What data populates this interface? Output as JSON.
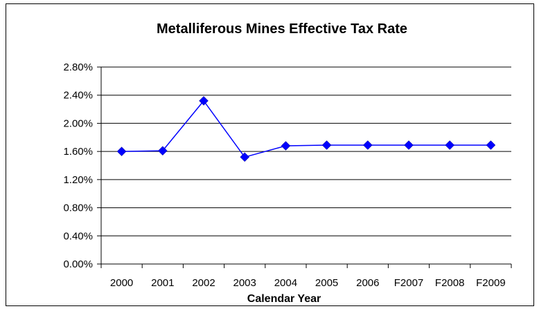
{
  "chart_data": {
    "type": "line",
    "title": "Metalliferous Mines Effective Tax Rate",
    "xlabel": "Calendar Year",
    "ylabel": "",
    "categories": [
      "2000",
      "2001",
      "2002",
      "2003",
      "2004",
      "2005",
      "2006",
      "F2007",
      "F2008",
      "F2009"
    ],
    "series": [
      {
        "values": [
          1.6,
          1.61,
          2.32,
          1.52,
          1.68,
          1.69,
          1.69,
          1.69,
          1.69,
          1.69
        ],
        "color": "#0000ff",
        "marker": "diamond"
      }
    ],
    "ylim": [
      0,
      2.8
    ],
    "yticks": [
      "0.00%",
      "0.40%",
      "0.80%",
      "1.20%",
      "1.60%",
      "2.00%",
      "2.40%",
      "2.80%"
    ],
    "grid": true,
    "legend": "none"
  }
}
